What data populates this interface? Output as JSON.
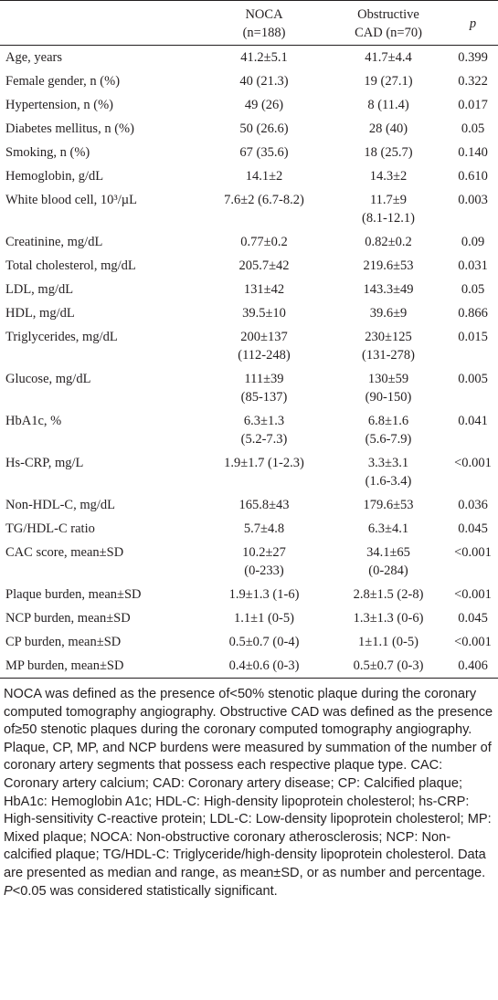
{
  "table": {
    "headers": {
      "col0": "",
      "col1_line1": "NOCA",
      "col1_line2": "(n=188)",
      "col2_line1": "Obstructive",
      "col2_line2": "CAD (n=70)",
      "col3": "p"
    },
    "rows": [
      {
        "label": "Age, years",
        "noca": [
          "41.2±5.1"
        ],
        "cad": [
          "41.7±4.4"
        ],
        "p": "0.399"
      },
      {
        "label": "Female gender, n (%)",
        "noca": [
          "40 (21.3)"
        ],
        "cad": [
          "19 (27.1)"
        ],
        "p": "0.322"
      },
      {
        "label": "Hypertension, n (%)",
        "noca": [
          "49 (26)"
        ],
        "cad": [
          "8 (11.4)"
        ],
        "p": "0.017"
      },
      {
        "label": "Diabetes mellitus, n (%)",
        "noca": [
          "50 (26.6)"
        ],
        "cad": [
          "28 (40)"
        ],
        "p": "0.05"
      },
      {
        "label": "Smoking, n (%)",
        "noca": [
          "67 (35.6)"
        ],
        "cad": [
          "18 (25.7)"
        ],
        "p": "0.140"
      },
      {
        "label": "Hemoglobin, g/dL",
        "noca": [
          "14.1±2"
        ],
        "cad": [
          "14.3±2"
        ],
        "p": "0.610"
      },
      {
        "label": "White blood cell, 10³/µL",
        "noca": [
          "7.6±2 (6.7-8.2)"
        ],
        "cad": [
          "11.7±9",
          "(8.1-12.1)"
        ],
        "p": "0.003"
      },
      {
        "label": "Creatinine, mg/dL",
        "noca": [
          "0.77±0.2"
        ],
        "cad": [
          "0.82±0.2"
        ],
        "p": "0.09"
      },
      {
        "label": "Total cholesterol, mg/dL",
        "noca": [
          "205.7±42"
        ],
        "cad": [
          "219.6±53"
        ],
        "p": "0.031"
      },
      {
        "label": "LDL, mg/dL",
        "noca": [
          "131±42"
        ],
        "cad": [
          "143.3±49"
        ],
        "p": "0.05"
      },
      {
        "label": "HDL, mg/dL",
        "noca": [
          "39.5±10"
        ],
        "cad": [
          "39.6±9"
        ],
        "p": "0.866"
      },
      {
        "label": "Triglycerides, mg/dL",
        "noca": [
          "200±137",
          "(112-248)"
        ],
        "cad": [
          "230±125",
          "(131-278)"
        ],
        "p": "0.015"
      },
      {
        "label": "Glucose, mg/dL",
        "noca": [
          "111±39",
          "(85-137)"
        ],
        "cad": [
          "130±59",
          "(90-150)"
        ],
        "p": "0.005"
      },
      {
        "label": "HbA1c, %",
        "noca": [
          "6.3±1.3",
          "(5.2-7.3)"
        ],
        "cad": [
          "6.8±1.6",
          "(5.6-7.9)"
        ],
        "p": "0.041"
      },
      {
        "label": "Hs-CRP, mg/L",
        "noca": [
          "1.9±1.7 (1-2.3)"
        ],
        "cad": [
          "3.3±3.1",
          "(1.6-3.4)"
        ],
        "p": "<0.001"
      },
      {
        "label": "Non-HDL-C, mg/dL",
        "noca": [
          "165.8±43"
        ],
        "cad": [
          "179.6±53"
        ],
        "p": "0.036"
      },
      {
        "label": "TG/HDL-C ratio",
        "noca": [
          "5.7±4.8"
        ],
        "cad": [
          "6.3±4.1"
        ],
        "p": "0.045"
      },
      {
        "label": "CAC score, mean±SD",
        "noca": [
          "10.2±27",
          "(0-233)"
        ],
        "cad": [
          "34.1±65",
          "(0-284)"
        ],
        "p": "<0.001"
      },
      {
        "label": "Plaque burden, mean±SD",
        "noca": [
          "1.9±1.3 (1-6)"
        ],
        "cad": [
          "2.8±1.5 (2-8)"
        ],
        "p": "<0.001"
      },
      {
        "label": "NCP burden, mean±SD",
        "noca": [
          "1.1±1 (0-5)"
        ],
        "cad": [
          "1.3±1.3 (0-6)"
        ],
        "p": "0.045"
      },
      {
        "label": "CP burden, mean±SD",
        "noca": [
          "0.5±0.7 (0-4)"
        ],
        "cad": [
          "1±1.1 (0-5)"
        ],
        "p": "<0.001"
      },
      {
        "label": "MP burden, mean±SD",
        "noca": [
          "0.4±0.6 (0-3)"
        ],
        "cad": [
          "0.5±0.7 (0-3)"
        ],
        "p": "0.406"
      }
    ]
  },
  "footnote": {
    "main": "NOCA was defined as the presence of<50% stenotic plaque during the coronary computed tomography angiography. Obstructive CAD was defined as the presence of≥50 stenotic plaques during the coronary computed tomography angiography. Plaque, CP, MP, and NCP burdens were measured by summation of the number of coronary artery segments that possess each respective plaque type. CAC: Coronary artery calcium; CAD: Coronary artery disease; CP: Calcified plaque; HbA1c: Hemoglobin A1c; HDL-C: High-density lipoprotein cholesterol; hs-CRP: High-sensitivity C-reactive protein; LDL-C: Low-density lipoprotein cholesterol; MP: Mixed plaque; NOCA: Non-obstructive coronary atherosclerosis; NCP: Non-calcified plaque; TG/HDL-C: Triglyceride/high-density lipoprotein cholesterol. Data are presented as median and range, as mean±SD, or as number and percentage.",
    "p_italic": "P",
    "p_rest": "<0.05 was considered statistically significant."
  }
}
